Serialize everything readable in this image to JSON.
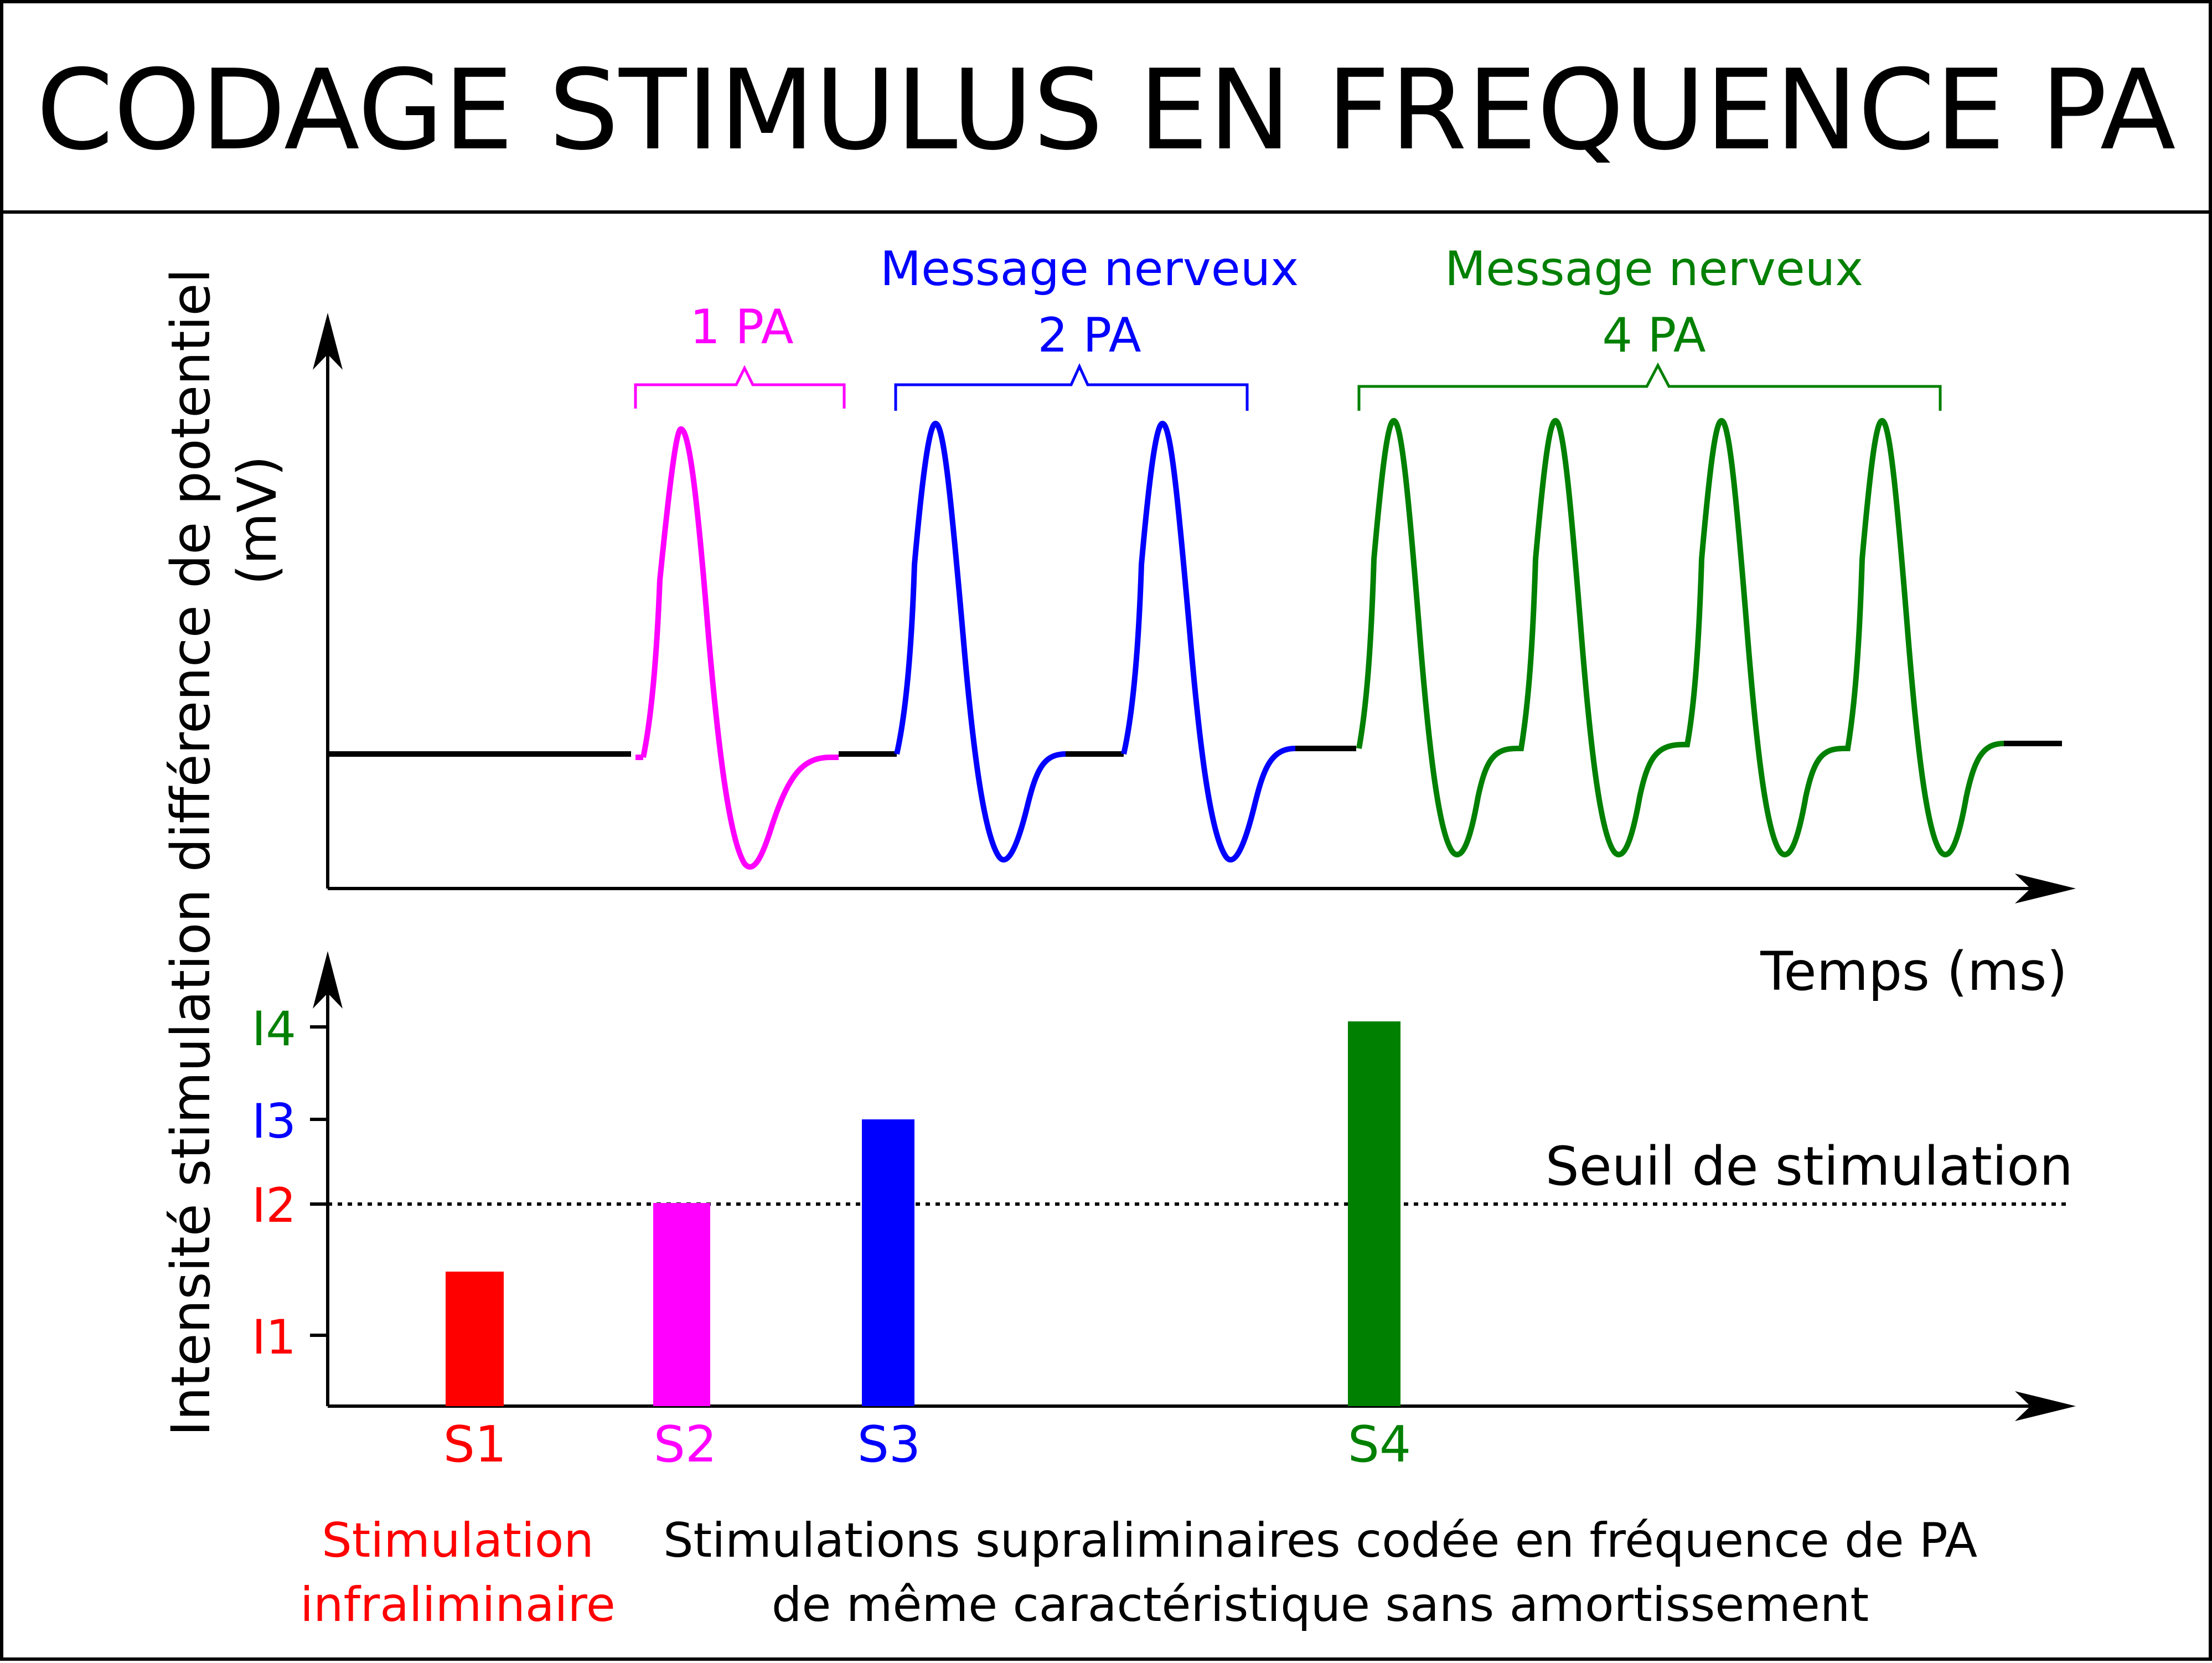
{
  "title": "CODAGE STIMULUS EN FREQUENCE PA",
  "colors": {
    "infra": "#ff0000",
    "s2": "#ff00ff",
    "s3": "#0000ff",
    "s4": "#008000",
    "axis": "#000000"
  },
  "top_graph": {
    "ylabel_line1": "différence de potentiel",
    "ylabel_line2": "(mV)",
    "xlabel": "Temps (ms)",
    "groups": [
      {
        "id": "pa1",
        "label_line1": "1 PA",
        "label_line2": "",
        "color_key": "s2",
        "count": 1
      },
      {
        "id": "pa2",
        "label_line1": "Message nerveux",
        "label_line2": "2 PA",
        "color_key": "s3",
        "count": 2
      },
      {
        "id": "pa4",
        "label_line1": "Message nerveux",
        "label_line2": "4 PA",
        "color_key": "s4",
        "count": 4
      }
    ]
  },
  "bottom_graph": {
    "ylabel": "Intensité stimulation",
    "threshold_label": "Seuil de stimulation",
    "ticks": [
      {
        "label": "I1",
        "color_key": "infra"
      },
      {
        "label": "I2",
        "color_key": "infra"
      },
      {
        "label": "I3",
        "color_key": "s3"
      },
      {
        "label": "I4",
        "color_key": "s4"
      }
    ],
    "bars": [
      {
        "label": "S1",
        "color_key": "infra",
        "intensity": "between I1 and I2"
      },
      {
        "label": "S2",
        "color_key": "s2",
        "intensity": "I2"
      },
      {
        "label": "S3",
        "color_key": "s3",
        "intensity": "I3"
      },
      {
        "label": "S4",
        "color_key": "s4",
        "intensity": "I4"
      }
    ]
  },
  "captions": {
    "infra_line1": "Stimulation",
    "infra_line2": "infraliminaire",
    "supra_line1": "Stimulations supraliminaires codée en fréquence de PA",
    "supra_line2": "de même caractéristique sans amortissement"
  }
}
